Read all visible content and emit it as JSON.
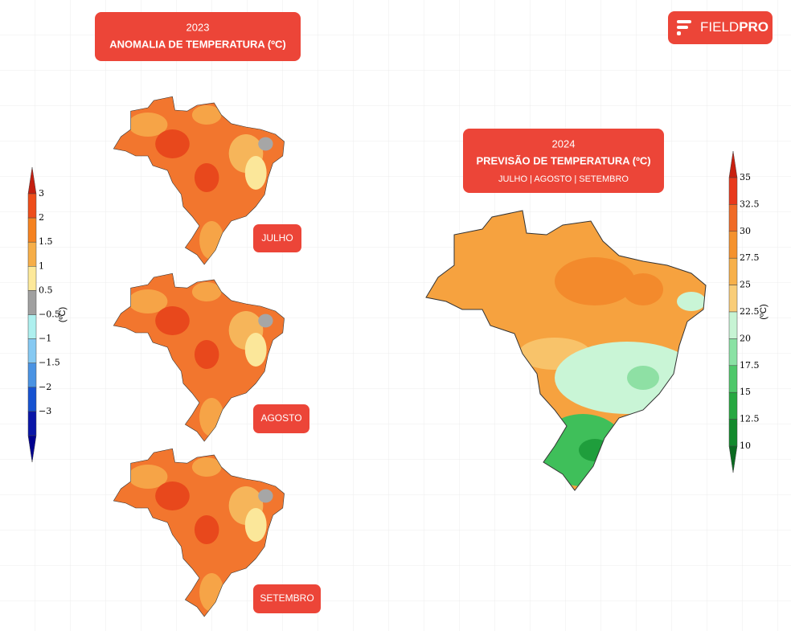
{
  "logo": {
    "field": "FIELD",
    "pro": "PRO"
  },
  "left_panel": {
    "year": "2023",
    "title": "ANOMALIA DE TEMPERATURA (ºC)",
    "maps": [
      "JULHO",
      "AGOSTO",
      "SETEMBRO"
    ],
    "legend": {
      "unit": "(ºC)",
      "labels": [
        "3",
        "2",
        "1.5",
        "1",
        "0.5",
        "−0.5",
        "−1",
        "−1.5",
        "−2",
        "−3"
      ]
    }
  },
  "right_panel": {
    "year": "2024",
    "title": "PREVISÃO DE TEMPERATURA (ºC)",
    "subtitle": "JULHO | AGOSTO | SETEMBRO",
    "legend": {
      "unit": "(ºC)",
      "labels": [
        "35",
        "32.5",
        "30",
        "27.5",
        "25",
        "22.5",
        "20",
        "17.5",
        "15",
        "12.5",
        "10"
      ]
    }
  }
}
